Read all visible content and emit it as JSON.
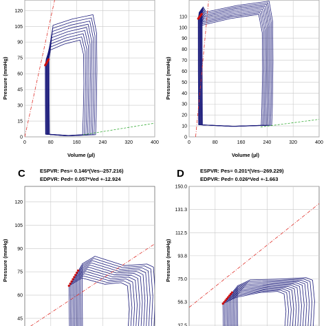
{
  "chart_data": [
    {
      "id": "A",
      "type": "line",
      "xlabel": "Volume (µl)",
      "ylabel": "Pressure (mmHg)",
      "x_ticks": [
        "0",
        "80",
        "160",
        "240",
        "320",
        "400"
      ],
      "y_ticks": [
        "0",
        "15",
        "30",
        "45",
        "60",
        "75",
        "90",
        "105",
        "120"
      ],
      "xlim": [
        0,
        400
      ],
      "ylim": [
        0,
        130
      ],
      "loops": {
        "count": 9,
        "esv_start": 63,
        "esv_step": 1.5,
        "edv_start": 178,
        "edv_step": 5,
        "pmax_start": 92,
        "pmax_step": 3,
        "ped_end": 1.5
      },
      "espvr": {
        "x1": 0,
        "y1": 0,
        "x2": 92,
        "y2": 130
      },
      "edpvr": {
        "x1": 180,
        "y1": 2,
        "x2": 400,
        "y2": 13
      },
      "colors": {
        "loop": "#1a1a7a",
        "espvr": "#e0302a",
        "edpvr": "#33aa33"
      }
    },
    {
      "id": "B",
      "type": "line",
      "xlabel": "Volume (µl)",
      "ylabel": "Pressure (mmHg)",
      "x_ticks": [
        "0",
        "80",
        "160",
        "240",
        "320",
        "400"
      ],
      "y_ticks": [
        "0",
        "10",
        "20",
        "30",
        "40",
        "50",
        "60",
        "70",
        "80",
        "90",
        "100",
        "110"
      ],
      "xlim": [
        0,
        400
      ],
      "ylim": [
        0,
        125
      ],
      "loops": {
        "count": 9,
        "esv_start": 28,
        "esv_step": 1.5,
        "edv_start": 222,
        "edv_step": 4,
        "pmax_start": 112,
        "pmax_step": 1.5,
        "ped_end": 10
      },
      "espvr": {
        "x1": 20,
        "y1": 0,
        "x2": 60,
        "y2": 125
      },
      "edpvr": {
        "x1": 220,
        "y1": 9,
        "x2": 400,
        "y2": 16
      },
      "colors": {
        "loop": "#1a1a7a",
        "espvr": "#e0302a",
        "edpvr": "#33aa33"
      }
    },
    {
      "id": "C",
      "type": "line",
      "espvr_text": "ESPVR: Pes= 0.146*(Ves--257.216)",
      "edpvr_text": "EDPVR: Ped= 0.057*Ved +-12.924",
      "ylabel": "Pressure (mmHg)",
      "y_ticks": [
        "45",
        "60",
        "75",
        "90",
        "105",
        "120"
      ],
      "ylim": [
        37,
        130
      ],
      "loops": {
        "count": 11,
        "esv_start": 68,
        "esv_step": 2,
        "edv_start": 158,
        "edv_step": 4,
        "pmax_start": 68,
        "pmax_step": 1.2,
        "pes_start": 66,
        "pes_step": 1.4
      },
      "espvr": {
        "x1": 0,
        "y1": 37.5,
        "x2": 200,
        "y2": 93
      },
      "colors": {
        "loop": "#1a1a7a",
        "espvr": "#e0302a"
      }
    },
    {
      "id": "D",
      "type": "line",
      "espvr_text": "ESPVR: Pes= 0.201*(Ves--269.229)",
      "edpvr_text": "EDPVR: Ped= 0.026*Ved +-1.663",
      "ylabel": "Pressure (mmHg)",
      "y_ticks": [
        "37.5",
        "56.3",
        "75.0",
        "93.8",
        "112.5",
        "131.3",
        "150.0"
      ],
      "ylim": [
        33,
        150
      ],
      "loops": {
        "count": 12,
        "esv_start": 52,
        "esv_step": 2,
        "edv_start": 146,
        "edv_step": 4,
        "pmax_start": 65,
        "pmax_step": 1,
        "pes_start": 55,
        "pes_step": 1.3
      },
      "espvr": {
        "x1": 0,
        "y1": 52,
        "x2": 200,
        "y2": 136
      },
      "colors": {
        "loop": "#1a1a7a",
        "espvr": "#e0302a"
      }
    }
  ]
}
